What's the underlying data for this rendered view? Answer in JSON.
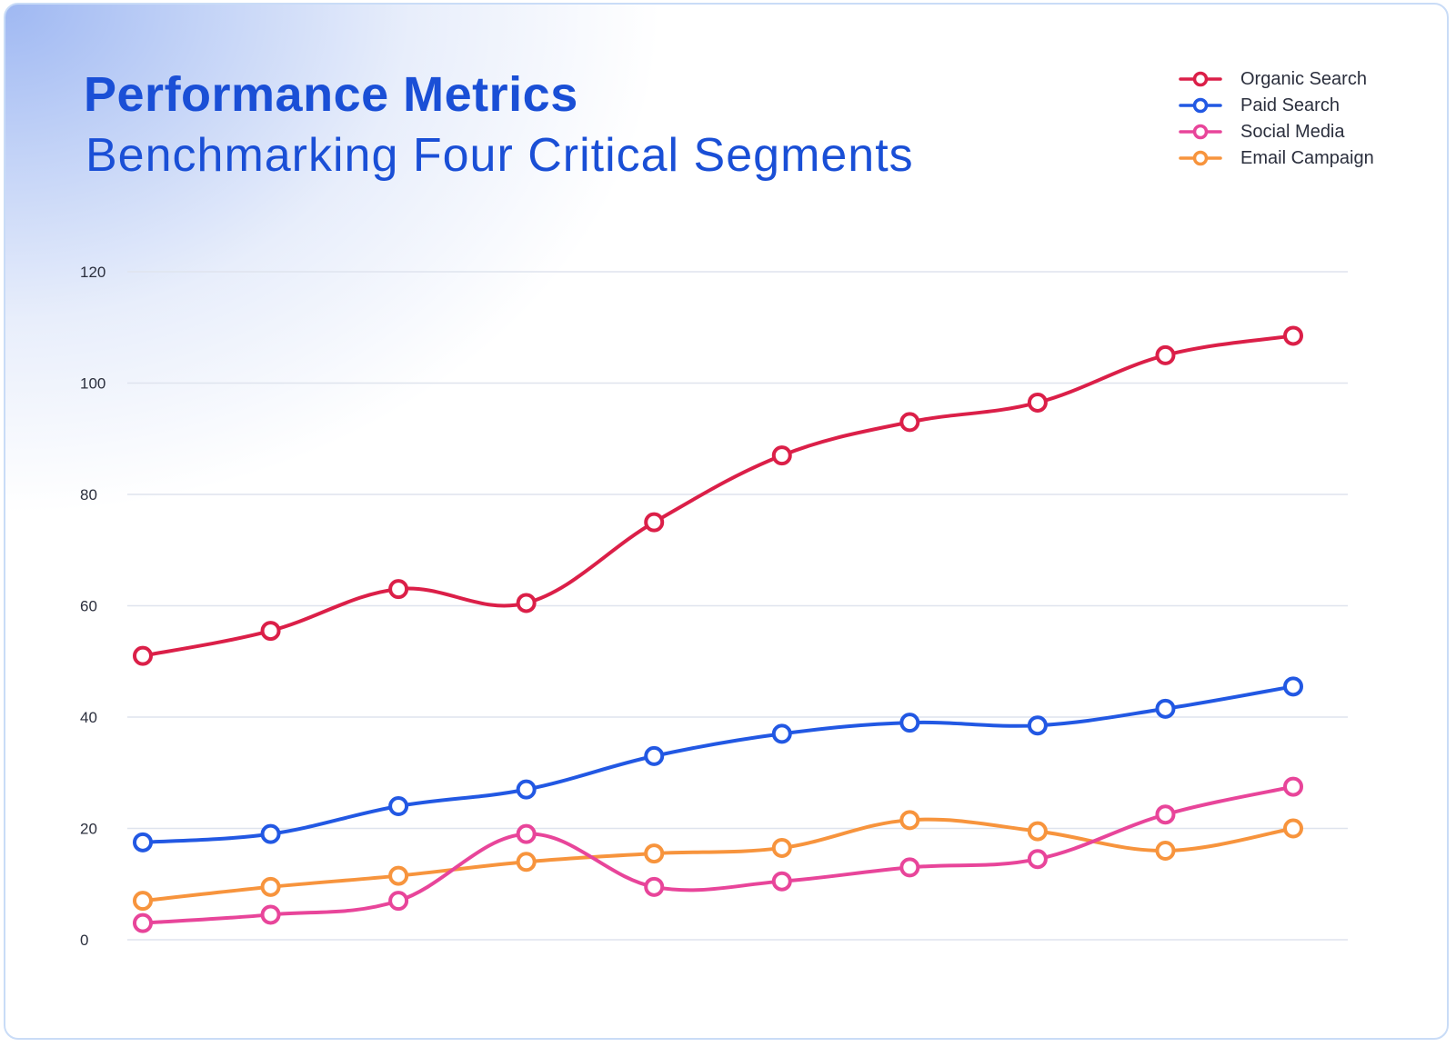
{
  "chart_data": {
    "type": "line",
    "title": "Performance Metrics",
    "subtitle": "Benchmarking Four Critical Segments",
    "xlabel": "",
    "ylabel": "",
    "ylim": [
      0,
      120
    ],
    "yticks": [
      "0",
      "20",
      "40",
      "60",
      "80",
      "100",
      "120"
    ],
    "grid": true,
    "legend": "top-right",
    "x": [
      1,
      2,
      3,
      4,
      5,
      6,
      7,
      8,
      9,
      10
    ],
    "series": [
      {
        "name": "Organic Search",
        "color": "#db1f48",
        "values": [
          51,
          55.5,
          63,
          60.5,
          75,
          87,
          93,
          96.5,
          105,
          108.5
        ]
      },
      {
        "name": "Paid Search",
        "color": "#2258e3",
        "values": [
          17.5,
          19,
          24,
          27,
          33,
          37,
          39,
          38.5,
          41.5,
          45.5
        ]
      },
      {
        "name": "Social Media",
        "color": "#e8459a",
        "values": [
          3,
          4.5,
          7,
          19,
          9.5,
          10.5,
          13,
          14.5,
          22.5,
          27.5
        ]
      },
      {
        "name": "Email Campaign",
        "color": "#f7943d",
        "values": [
          7,
          9.5,
          11.5,
          14,
          15.5,
          16.5,
          21.5,
          19.5,
          16,
          20
        ]
      }
    ]
  }
}
